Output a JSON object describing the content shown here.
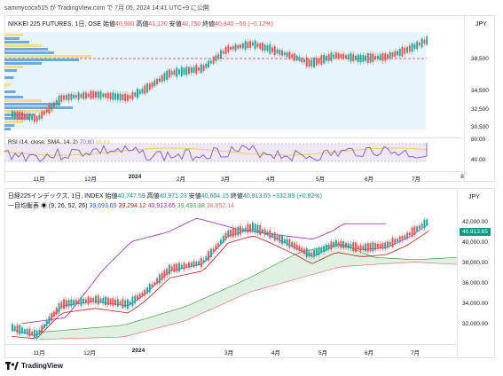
{
  "caption": "sammycoco515 が TradingView.com で 7月 05, 2024 14:41 UTC+9 に公開",
  "chart1": {
    "title": "NIKKEI 225 FUTURES, 1日, OSE",
    "open_label": "始値",
    "open": "40,900",
    "high_label": "高値",
    "high": "41,120",
    "low_label": "安値",
    "low": "40,750",
    "close_label": "終値",
    "close": "40,840",
    "change": "−50 (−0.12%)",
    "currency": "JPY",
    "y_ticks": [
      "38,500",
      "34,500",
      "32,500",
      "30,500"
    ],
    "rsi_label": "RSI (14, close, SMA, 14, 2)",
    "rsi_value": "70.80",
    "rsi_ma_value": "58.63",
    "rsi_ticks": [
      "80.00",
      "40.00"
    ],
    "x_labels": [
      "11月",
      "12月",
      "2024",
      "2月",
      "3月",
      "4月",
      "5月",
      "6月",
      "7月",
      "8"
    ]
  },
  "chart2": {
    "title": "日経225インデックス, 1日, INDEX",
    "open_label": "始値",
    "open": "40,747.59",
    "high_label": "高値",
    "high": "40,971.23",
    "low_label": "安値",
    "low": "40,604.15",
    "close_label": "終値",
    "close": "40,913.65",
    "change": "+332.89 (+0.82%)",
    "ichimoku_label": "一目均衡表 ◉ (9, 26, 52, 26)",
    "ichimoku_values": [
      "39,693.65",
      "39,294.12",
      "40,913.65",
      "39,493.88",
      "38,852.14"
    ],
    "currency": "JPY",
    "price_badge": "40,913.65",
    "y_ticks": [
      "42,000.00",
      "40,000.00",
      "38,000.00",
      "36,000.00",
      "34,000.00",
      "32,000.00"
    ],
    "x_labels": [
      "11月",
      "12月",
      "2024",
      "3月",
      "4月",
      "5月",
      "6月",
      "7月"
    ]
  },
  "footer": {
    "logo_text": "TradingView"
  },
  "colors": {
    "up": "#26a69a",
    "down": "#ef5350",
    "rsi": "#7e57c2",
    "rsi_ma": "#f7c948",
    "tenkan": "#2962ff",
    "kijun": "#b71c1c",
    "chikou": "#9c27b0",
    "span_a": "#43a047",
    "span_b": "#e57373",
    "badge": "#089981"
  }
}
